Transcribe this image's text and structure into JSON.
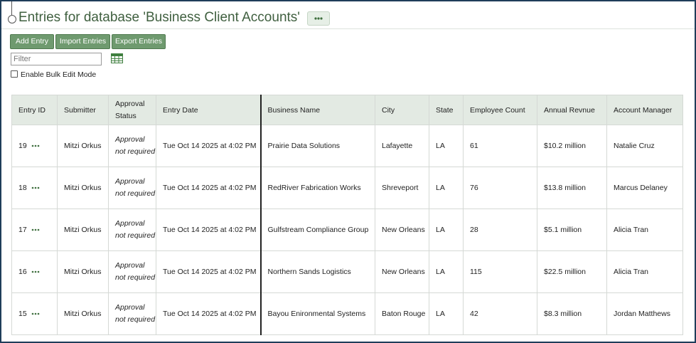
{
  "header": {
    "title": "Entries for database 'Business Client Accounts'"
  },
  "buttons": [
    "Add Entry",
    "Import Entries",
    "Export Entries"
  ],
  "filter": {
    "placeholder": "Filter"
  },
  "bulk_edit": {
    "label": "Enable Bulk Edit Mode"
  },
  "table": {
    "columns": [
      "Entry ID",
      "Submitter",
      "Approval Status",
      "Entry Date",
      "Business Name",
      "City",
      "State",
      "Employee Count",
      "Annual Revnue",
      "Account Manager"
    ],
    "rows": [
      [
        19,
        "Mitzi Orkus",
        "Approval not required",
        "Tue Oct 14 2025 at 4:02 PM",
        "Prairie Data Solutions",
        "Lafayette",
        "LA",
        61,
        "$10.2 million",
        "Natalie Cruz"
      ],
      [
        18,
        "Mitzi Orkus",
        "Approval not required",
        "Tue Oct 14 2025 at 4:02 PM",
        "RedRiver Fabrication Works",
        "Shreveport",
        "LA",
        76,
        "$13.8 million",
        "Marcus Delaney"
      ],
      [
        17,
        "Mitzi Orkus",
        "Approval not required",
        "Tue Oct 14 2025 at 4:02 PM",
        "Gulfstream Compliance Group",
        "New Orleans",
        "LA",
        28,
        "$5.1 million",
        "Alicia Tran"
      ],
      [
        16,
        "Mitzi Orkus",
        "Approval not required",
        "Tue Oct 14 2025 at 4:02 PM",
        "Northern Sands Logistics",
        "New Orleans",
        "LA",
        115,
        "$22.5 million",
        "Alicia Tran"
      ],
      [
        15,
        "Mitzi Orkus",
        "Approval not required",
        "Tue Oct 14 2025 at 4:02 PM",
        "Bayou Enironmental Systems",
        "Baton Rouge",
        "LA",
        42,
        "$8.3 million",
        "Jordan Matthews"
      ]
    ]
  }
}
